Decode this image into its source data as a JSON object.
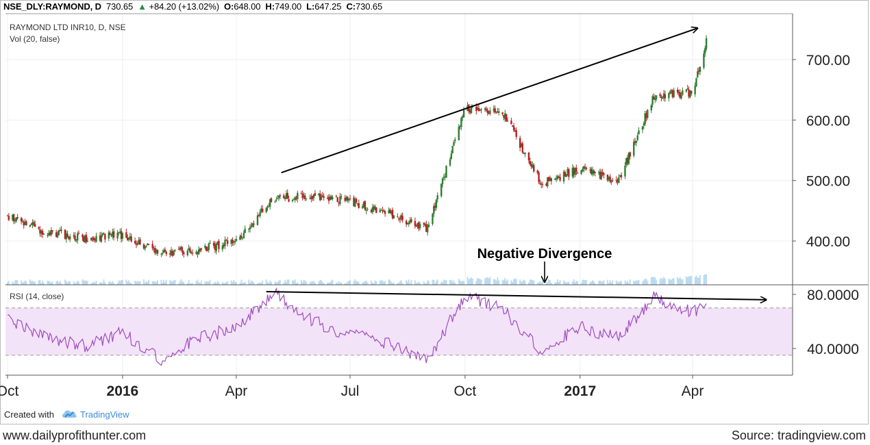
{
  "header": {
    "symbol": "NSE_DLY:RAYMOND, D",
    "last": "730.65",
    "change": "+84.20 (+13.02%)",
    "open_label": "O:",
    "open": "648.00",
    "high_label": "H:",
    "high": "749.00",
    "low_label": "L:",
    "low": "647.25",
    "close_label": "C:",
    "close": "730.65"
  },
  "legend": {
    "instrument": "RAYMOND LTD INR10, D, NSE",
    "volume": "Vol (20, false)",
    "rsi": "RSI (14, close)"
  },
  "annotation": {
    "text": "Negative Divergence"
  },
  "footer": {
    "created_with": "Created with",
    "brand": "TradingView",
    "site": "www.dailyprofithunter.com",
    "source": "Source: tradingview.com"
  },
  "colors": {
    "up": "#2f7d32",
    "down": "#b22222",
    "rsi_line": "#a04cc0",
    "rsi_fill": "#f3e3f8",
    "volume": "#86c1e6",
    "grid": "#eeeeee"
  },
  "chart_data": [
    {
      "type": "candlestick",
      "title": "RAYMOND LTD INR10, D, NSE",
      "x_tick_labels": [
        "Oct",
        "2016",
        "Apr",
        "Jul",
        "Oct",
        "2017",
        "Apr"
      ],
      "y_tick_labels": [
        "400.00",
        "500.00",
        "600.00",
        "700.00"
      ],
      "ylim": [
        345,
        760
      ],
      "x": [
        "2015-10-01",
        "2015-11-01",
        "2015-12-01",
        "2016-01-01",
        "2016-02-01",
        "2016-03-01",
        "2016-04-01",
        "2016-05-01",
        "2016-06-01",
        "2016-07-01",
        "2016-08-01",
        "2016-09-01",
        "2016-10-01",
        "2016-11-01",
        "2016-12-01",
        "2017-01-01",
        "2017-02-01",
        "2017-03-01",
        "2017-04-01",
        "2017-04-12"
      ],
      "price": [
        440,
        415,
        405,
        410,
        380,
        385,
        400,
        470,
        475,
        465,
        445,
        420,
        620,
        610,
        495,
        520,
        500,
        640,
        645,
        730
      ],
      "trend_line": {
        "from": [
          "2016-05-07",
          513
        ],
        "to": [
          "2017-04-05",
          752
        ]
      }
    },
    {
      "type": "area",
      "title": "RSI (14, close)",
      "y_tick_labels": [
        "40.0000",
        "80.0000"
      ],
      "ylim": [
        23,
        95
      ],
      "bands": [
        35,
        70
      ],
      "x": [
        "2015-10-01",
        "2015-11-01",
        "2015-12-01",
        "2016-01-01",
        "2016-02-01",
        "2016-03-01",
        "2016-04-01",
        "2016-05-01",
        "2016-06-01",
        "2016-07-01",
        "2016-08-01",
        "2016-09-01",
        "2016-10-01",
        "2016-11-01",
        "2016-12-01",
        "2017-01-01",
        "2017-02-01",
        "2017-03-01",
        "2017-04-01",
        "2017-04-12"
      ],
      "values": [
        62,
        48,
        42,
        52,
        32,
        48,
        55,
        82,
        60,
        50,
        44,
        30,
        80,
        68,
        38,
        56,
        48,
        78,
        66,
        76
      ],
      "trend_line": {
        "from": [
          "2016-04-25",
          82
        ],
        "to": [
          "2017-05-30",
          76
        ]
      },
      "annotation": "Negative Divergence"
    }
  ]
}
